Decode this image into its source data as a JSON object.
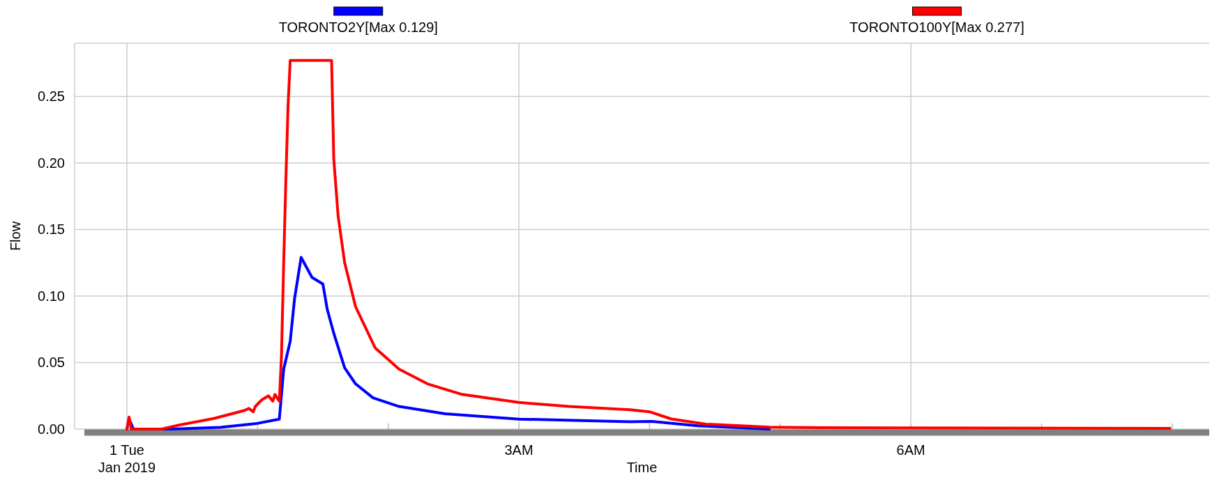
{
  "chart_data": {
    "type": "line",
    "xlabel": "Time",
    "ylabel": "Flow",
    "xlim": [
      "2018-12-31T23:36",
      "2019-01-01T08:17"
    ],
    "xticks": [
      {
        "value": "2019-01-01T00:00",
        "label": "1 Tue"
      },
      {
        "value": "2019-01-01T01:00",
        "label": null
      },
      {
        "value": "2019-01-01T02:00",
        "label": null
      },
      {
        "value": "2019-01-01T03:00",
        "label": "3AM"
      },
      {
        "value": "2019-01-01T04:00",
        "label": null
      },
      {
        "value": "2019-01-01T05:00",
        "label": null
      },
      {
        "value": "2019-01-01T06:00",
        "label": "6AM"
      },
      {
        "value": "2019-01-01T07:00",
        "label": null
      },
      {
        "value": "2019-01-01T08:00",
        "label": null
      }
    ],
    "ylim": [
      0,
      0.29
    ],
    "yticks": [
      {
        "value": 0,
        "label": "0.00"
      },
      {
        "value": 0.05,
        "label": "0.05"
      },
      {
        "value": 0.1,
        "label": "0.10"
      },
      {
        "value": 0.15,
        "label": "0.15"
      },
      {
        "value": 0.2,
        "label": "0.20"
      },
      {
        "value": 0.25,
        "label": "0.25"
      }
    ],
    "grid": true,
    "legend": "top",
    "line_style": "solid",
    "annotations": [
      "Jan 2019"
    ],
    "series": [
      {
        "name": "TORONTO2Y[Max 0.129]",
        "color": "#0000ff",
        "x": [
          "2019-01-01T00:00",
          "2019-01-01T00:01",
          "2019-01-01T00:03",
          "2019-01-01T00:20",
          "2019-01-01T00:43",
          "2019-01-01T00:59",
          "2019-01-01T01:10",
          "2019-01-01T01:12",
          "2019-01-01T01:15",
          "2019-01-01T01:17",
          "2019-01-01T01:20",
          "2019-01-01T01:25",
          "2019-01-01T01:30",
          "2019-01-01T01:32",
          "2019-01-01T01:35",
          "2019-01-01T01:40",
          "2019-01-01T01:45",
          "2019-01-01T01:53",
          "2019-01-01T02:05",
          "2019-01-01T02:26",
          "2019-01-01T03:00",
          "2019-01-01T03:51",
          "2019-01-01T04:01",
          "2019-01-01T04:22",
          "2019-01-01T04:55"
        ],
        "values": [
          0,
          0.0075,
          0,
          0,
          0.0013,
          0.004,
          0.0075,
          0.045,
          0.066,
          0.098,
          0.129,
          0.114,
          0.109,
          0.09,
          0.072,
          0.046,
          0.034,
          0.0235,
          0.017,
          0.0115,
          0.0075,
          0.0055,
          0.0058,
          0.0025,
          0
        ]
      },
      {
        "name": "TORONTO100Y[Max 0.277]",
        "color": "#ff0000",
        "x": [
          "2019-01-01T00:00",
          "2019-01-01T00:01",
          "2019-01-01T00:02",
          "2019-01-01T00:16",
          "2019-01-01T00:23",
          "2019-01-01T00:40",
          "2019-01-01T00:54",
          "2019-01-01T00:56",
          "2019-01-01T00:58",
          "2019-01-01T00:59",
          "2019-01-01T01:02",
          "2019-01-01T01:05",
          "2019-01-01T01:07",
          "2019-01-01T01:08",
          "2019-01-01T01:10",
          "2019-01-01T01:11",
          "2019-01-01T01:12",
          "2019-01-01T01:13",
          "2019-01-01T01:14",
          "2019-01-01T01:15",
          "2019-01-01T01:34",
          "2019-01-01T01:35",
          "2019-01-01T01:37",
          "2019-01-01T01:40",
          "2019-01-01T01:45",
          "2019-01-01T01:54",
          "2019-01-01T02:05",
          "2019-01-01T02:18",
          "2019-01-01T02:34",
          "2019-01-01T03:00",
          "2019-01-01T03:23",
          "2019-01-01T03:51",
          "2019-01-01T04:00",
          "2019-01-01T04:10",
          "2019-01-01T04:26",
          "2019-01-01T04:55",
          "2019-01-01T05:18",
          "2019-01-01T07:59"
        ],
        "values": [
          0,
          0.009,
          0,
          0,
          0.0027,
          0.008,
          0.014,
          0.0155,
          0.013,
          0.017,
          0.022,
          0.025,
          0.021,
          0.026,
          0.021,
          0.056,
          0.125,
          0.187,
          0.243,
          0.277,
          0.277,
          0.203,
          0.16,
          0.125,
          0.092,
          0.061,
          0.045,
          0.034,
          0.026,
          0.02,
          0.017,
          0.0145,
          0.013,
          0.0076,
          0.0037,
          0.0014,
          0.001,
          0.0005
        ]
      }
    ]
  }
}
